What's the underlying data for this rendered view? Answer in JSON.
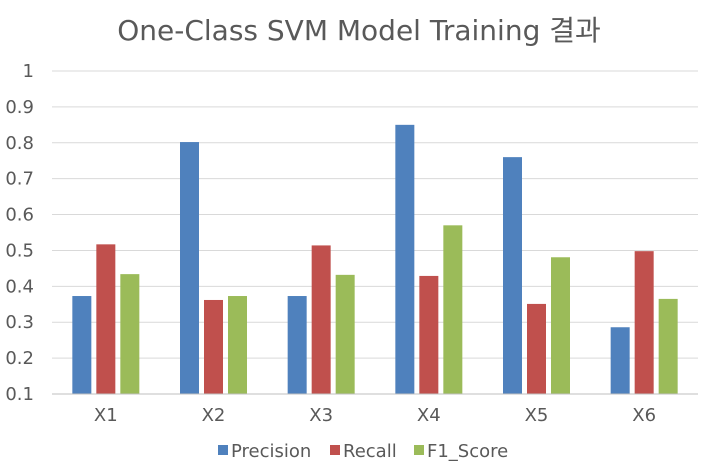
{
  "chart_data": {
    "type": "bar",
    "title": "One-Class SVM Model Training 결과",
    "categories": [
      "X1",
      "X2",
      "X3",
      "X4",
      "X5",
      "X6"
    ],
    "series": [
      {
        "name": "Precision",
        "color": "#4f81bd",
        "values": [
          0.373,
          0.802,
          0.373,
          0.85,
          0.76,
          0.286
        ]
      },
      {
        "name": "Recall",
        "color": "#c0504d",
        "values": [
          0.517,
          0.362,
          0.514,
          0.429,
          0.351,
          0.498
        ]
      },
      {
        "name": "F1_Score",
        "color": "#9bbb59",
        "values": [
          0.434,
          0.373,
          0.432,
          0.57,
          0.481,
          0.365
        ]
      }
    ],
    "ylim": [
      0.1,
      1
    ],
    "yticks": [
      "0.1",
      "0.2",
      "0.3",
      "0.4",
      "0.5",
      "0.6",
      "0.7",
      "0.8",
      "0.9",
      "1"
    ],
    "grid": true,
    "legend_position": "bottom"
  }
}
